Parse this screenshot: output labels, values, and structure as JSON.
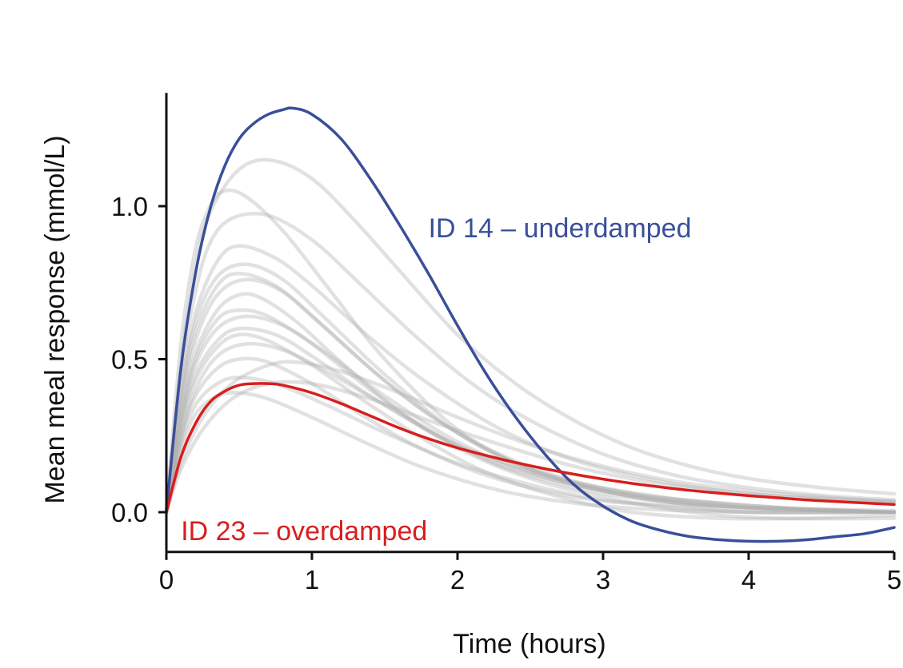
{
  "chart_data": {
    "type": "line",
    "title": "",
    "xlabel": "Time (hours)",
    "ylabel": "Mean meal response (mmol/L)",
    "xlim": [
      0,
      5
    ],
    "ylim": [
      -0.13,
      1.37
    ],
    "x_ticks": [
      0,
      1,
      2,
      3,
      4,
      5
    ],
    "x_tick_labels": [
      "0",
      "1",
      "2",
      "3",
      "4",
      "5"
    ],
    "y_ticks": [
      0.0,
      0.5,
      1.0
    ],
    "y_tick_labels": [
      "0.0",
      "0.5",
      "1.0"
    ],
    "grid": false,
    "legend": "none",
    "colors": {
      "underdamped": "#3a4f9a",
      "overdamped": "#d81e1e",
      "background": "#b0b0b0",
      "axis": "#111111"
    },
    "annotations": [
      {
        "text": "ID 14 – underdamped",
        "x": 1.8,
        "y": 0.93,
        "color": "#3a4f9a",
        "series": "ID 14"
      },
      {
        "text": "ID 23 – overdamped",
        "x": 0.1,
        "y": -0.06,
        "color": "#d81e1e",
        "series": "ID 23"
      }
    ],
    "series": [
      {
        "name": "ID 14",
        "role": "highlight",
        "color": "#3a4f9a",
        "x": [
          0,
          0.1,
          0.2,
          0.3,
          0.4,
          0.5,
          0.6,
          0.7,
          0.8,
          0.87,
          1.0,
          1.2,
          1.4,
          1.6,
          1.8,
          2.0,
          2.2,
          2.4,
          2.6,
          2.8,
          3.0,
          3.2,
          3.4,
          3.6,
          3.8,
          4.0,
          4.2,
          4.4,
          4.6,
          4.8,
          5.0
        ],
        "y": [
          0,
          0.47,
          0.78,
          0.99,
          1.13,
          1.22,
          1.27,
          1.3,
          1.315,
          1.32,
          1.3,
          1.22,
          1.09,
          0.94,
          0.78,
          0.61,
          0.45,
          0.31,
          0.19,
          0.09,
          0.02,
          -0.03,
          -0.06,
          -0.08,
          -0.09,
          -0.095,
          -0.095,
          -0.09,
          -0.08,
          -0.07,
          -0.05
        ]
      },
      {
        "name": "ID 23",
        "role": "highlight",
        "color": "#d81e1e",
        "x": [
          0,
          0.1,
          0.2,
          0.3,
          0.4,
          0.5,
          0.6,
          0.7,
          0.8,
          1.0,
          1.2,
          1.4,
          1.6,
          1.8,
          2.0,
          2.2,
          2.4,
          2.6,
          2.8,
          3.0,
          3.2,
          3.4,
          3.6,
          3.8,
          4.0,
          4.2,
          4.4,
          4.6,
          4.8,
          5.0
        ],
        "y": [
          0,
          0.18,
          0.29,
          0.36,
          0.395,
          0.415,
          0.42,
          0.42,
          0.415,
          0.39,
          0.355,
          0.315,
          0.275,
          0.24,
          0.21,
          0.185,
          0.162,
          0.142,
          0.124,
          0.108,
          0.094,
          0.082,
          0.071,
          0.062,
          0.054,
          0.047,
          0.04,
          0.035,
          0.03,
          0.025
        ]
      },
      {
        "name": "",
        "role": "background",
        "x": [
          0,
          0.1,
          0.2,
          0.3,
          0.5,
          0.72,
          1.0,
          1.3,
          1.6,
          2.0,
          2.4,
          2.8,
          3.2,
          3.6,
          4.0,
          4.5,
          5.0
        ],
        "y": [
          0,
          0.48,
          0.8,
          0.98,
          1.12,
          1.15,
          1.09,
          0.95,
          0.79,
          0.58,
          0.42,
          0.3,
          0.21,
          0.15,
          0.11,
          0.08,
          0.06
        ]
      },
      {
        "name": "",
        "role": "background",
        "x": [
          0,
          0.1,
          0.2,
          0.3,
          0.4,
          0.55,
          0.8,
          1.1,
          1.5,
          2.0,
          2.5,
          3.0,
          3.5,
          4.0,
          4.5,
          5.0
        ],
        "y": [
          0,
          0.55,
          0.86,
          1.0,
          1.05,
          1.03,
          0.92,
          0.74,
          0.5,
          0.27,
          0.14,
          0.07,
          0.03,
          0.015,
          0.01,
          0.005
        ]
      },
      {
        "name": "",
        "role": "background",
        "x": [
          0,
          0.1,
          0.2,
          0.3,
          0.45,
          0.7,
          1.0,
          1.3,
          1.7,
          2.1,
          2.5,
          3.0,
          3.5,
          4.0,
          4.5,
          5.0
        ],
        "y": [
          0,
          0.45,
          0.72,
          0.88,
          0.96,
          0.97,
          0.89,
          0.76,
          0.58,
          0.42,
          0.3,
          0.19,
          0.12,
          0.08,
          0.055,
          0.04
        ]
      },
      {
        "name": "",
        "role": "background",
        "x": [
          0,
          0.1,
          0.2,
          0.35,
          0.5,
          0.75,
          1.0,
          1.4,
          1.8,
          2.3,
          2.8,
          3.4,
          4.0,
          4.5,
          5.0
        ],
        "y": [
          0,
          0.4,
          0.65,
          0.82,
          0.87,
          0.83,
          0.74,
          0.57,
          0.42,
          0.27,
          0.17,
          0.1,
          0.06,
          0.045,
          0.035
        ]
      },
      {
        "name": "",
        "role": "background",
        "x": [
          0,
          0.1,
          0.2,
          0.35,
          0.55,
          0.8,
          1.1,
          1.5,
          2.0,
          2.5,
          3.0,
          3.5,
          4.0,
          5.0
        ],
        "y": [
          0,
          0.38,
          0.62,
          0.77,
          0.81,
          0.76,
          0.63,
          0.45,
          0.26,
          0.14,
          0.07,
          0.03,
          0.01,
          0.0
        ]
      },
      {
        "name": "",
        "role": "background",
        "x": [
          0,
          0.1,
          0.2,
          0.35,
          0.5,
          0.75,
          1.0,
          1.4,
          1.8,
          2.3,
          2.8,
          3.4,
          4.0,
          5.0
        ],
        "y": [
          0,
          0.36,
          0.59,
          0.74,
          0.78,
          0.74,
          0.64,
          0.47,
          0.32,
          0.18,
          0.1,
          0.05,
          0.02,
          0.0
        ]
      },
      {
        "name": "",
        "role": "background",
        "x": [
          0,
          0.1,
          0.2,
          0.35,
          0.55,
          0.8,
          1.1,
          1.5,
          2.0,
          2.6,
          3.2,
          3.8,
          4.4,
          5.0
        ],
        "y": [
          0,
          0.34,
          0.56,
          0.71,
          0.76,
          0.72,
          0.6,
          0.43,
          0.26,
          0.13,
          0.06,
          0.03,
          0.01,
          0.0
        ]
      },
      {
        "name": "",
        "role": "background",
        "x": [
          0,
          0.1,
          0.2,
          0.35,
          0.5,
          0.7,
          1.0,
          1.4,
          1.8,
          2.3,
          2.9,
          3.5,
          4.2,
          5.0
        ],
        "y": [
          0,
          0.3,
          0.5,
          0.63,
          0.66,
          0.64,
          0.55,
          0.4,
          0.27,
          0.15,
          0.07,
          0.03,
          0.01,
          0.0
        ]
      },
      {
        "name": "",
        "role": "background",
        "x": [
          0,
          0.1,
          0.2,
          0.35,
          0.55,
          0.8,
          1.1,
          1.5,
          2.0,
          2.5,
          3.0,
          3.6,
          4.2,
          5.0
        ],
        "y": [
          0,
          0.29,
          0.48,
          0.6,
          0.64,
          0.61,
          0.52,
          0.38,
          0.23,
          0.13,
          0.07,
          0.03,
          0.01,
          0.0
        ]
      },
      {
        "name": "",
        "role": "background",
        "x": [
          0,
          0.1,
          0.2,
          0.35,
          0.5,
          0.75,
          1.0,
          1.4,
          1.9,
          2.4,
          3.0,
          3.6,
          4.2,
          5.0
        ],
        "y": [
          0,
          0.28,
          0.45,
          0.56,
          0.6,
          0.58,
          0.51,
          0.38,
          0.24,
          0.14,
          0.07,
          0.03,
          0.01,
          0.0
        ]
      },
      {
        "name": "",
        "role": "background",
        "x": [
          0,
          0.1,
          0.2,
          0.35,
          0.55,
          0.8,
          1.1,
          1.5,
          2.0,
          2.6,
          3.2,
          3.8,
          4.4,
          5.0
        ],
        "y": [
          0,
          0.24,
          0.4,
          0.51,
          0.55,
          0.53,
          0.46,
          0.35,
          0.22,
          0.12,
          0.06,
          0.03,
          0.01,
          0.0
        ]
      },
      {
        "name": "",
        "role": "background",
        "x": [
          0,
          0.1,
          0.2,
          0.35,
          0.5,
          0.7,
          1.0,
          1.3,
          1.7,
          2.2,
          2.8,
          3.4,
          4.0,
          5.0
        ],
        "y": [
          0,
          0.24,
          0.38,
          0.47,
          0.5,
          0.49,
          0.42,
          0.33,
          0.22,
          0.12,
          0.05,
          0.02,
          0.0,
          0.0
        ]
      },
      {
        "name": "",
        "role": "background",
        "x": [
          0,
          0.1,
          0.2,
          0.35,
          0.5,
          0.75,
          1.1,
          1.5,
          2.0,
          2.5,
          3.0,
          3.5,
          4.0,
          5.0
        ],
        "y": [
          0,
          0.22,
          0.35,
          0.42,
          0.44,
          0.42,
          0.35,
          0.26,
          0.16,
          0.09,
          0.04,
          0.02,
          0.0,
          0.0
        ]
      },
      {
        "name": "",
        "role": "background",
        "x": [
          0,
          0.1,
          0.2,
          0.35,
          0.5,
          0.7,
          1.0,
          1.4,
          1.8,
          2.3,
          2.8,
          3.3,
          4.0,
          5.0
        ],
        "y": [
          0,
          0.2,
          0.32,
          0.38,
          0.39,
          0.37,
          0.31,
          0.22,
          0.14,
          0.07,
          0.03,
          0.01,
          0.0,
          0.0
        ]
      },
      {
        "name": "",
        "role": "background",
        "x": [
          0,
          0.1,
          0.25,
          0.45,
          0.7,
          0.9,
          1.2,
          1.6,
          2.0,
          2.5,
          3.0,
          3.5,
          4.0,
          4.5,
          5.0
        ],
        "y": [
          0,
          0.16,
          0.31,
          0.42,
          0.48,
          0.49,
          0.46,
          0.39,
          0.31,
          0.22,
          0.15,
          0.1,
          0.07,
          0.05,
          0.035
        ]
      },
      {
        "name": "",
        "role": "background",
        "x": [
          0,
          0.1,
          0.25,
          0.45,
          0.7,
          1.0,
          1.4,
          1.8,
          2.3,
          2.8,
          3.3,
          3.8,
          4.4,
          5.0
        ],
        "y": [
          0,
          0.14,
          0.27,
          0.37,
          0.42,
          0.42,
          0.37,
          0.3,
          0.22,
          0.15,
          0.1,
          0.07,
          0.045,
          0.03
        ]
      },
      {
        "name": "",
        "role": "background",
        "x": [
          0,
          0.1,
          0.2,
          0.35,
          0.5,
          0.65,
          0.9,
          1.2,
          1.6,
          2.0,
          2.5,
          3.0,
          3.6,
          4.2,
          5.0
        ],
        "y": [
          0,
          0.32,
          0.52,
          0.66,
          0.71,
          0.7,
          0.62,
          0.49,
          0.33,
          0.21,
          0.11,
          0.05,
          0.0,
          -0.02,
          -0.02
        ]
      },
      {
        "name": "",
        "role": "background",
        "x": [
          0,
          0.1,
          0.2,
          0.35,
          0.5,
          0.7,
          1.0,
          1.4,
          1.8,
          2.2,
          2.7,
          3.2,
          3.8,
          4.4,
          5.0
        ],
        "y": [
          0,
          0.26,
          0.43,
          0.54,
          0.58,
          0.56,
          0.48,
          0.35,
          0.23,
          0.13,
          0.05,
          0.0,
          -0.02,
          -0.02,
          -0.01
        ]
      }
    ]
  }
}
